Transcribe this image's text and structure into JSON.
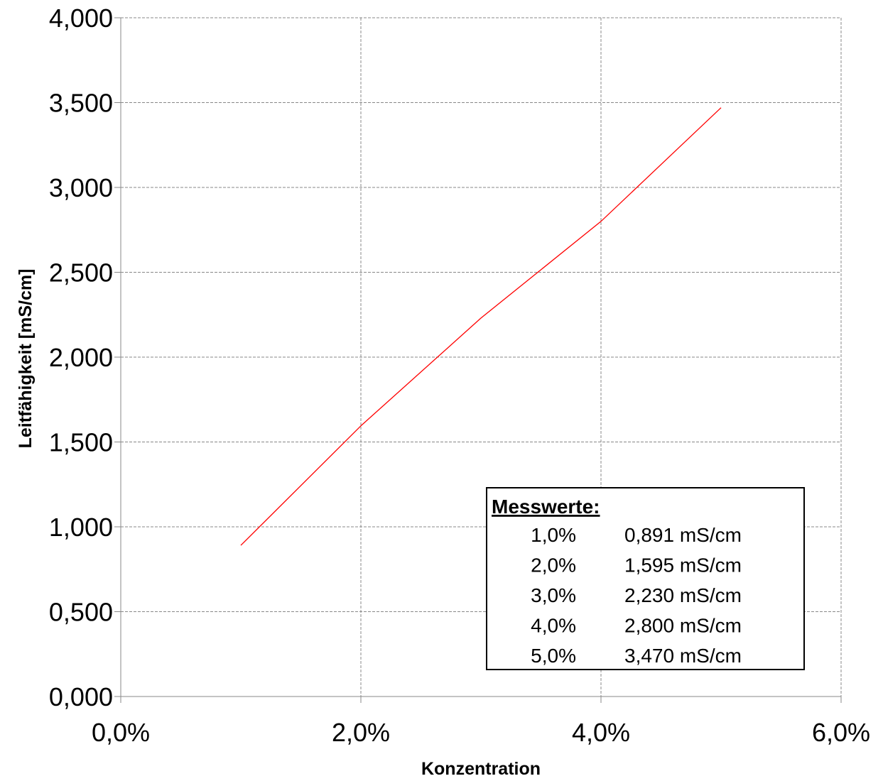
{
  "chart_data": {
    "type": "line",
    "xlabel": "Konzentration",
    "ylabel": "Leitfähigkeit  [mS/cm]",
    "x": [
      1.0,
      2.0,
      3.0,
      4.0,
      5.0
    ],
    "series": [
      {
        "values": [
          0.891,
          1.595,
          2.23,
          2.8,
          3.47
        ],
        "color": "#ff0000"
      }
    ],
    "xlim": [
      0,
      6
    ],
    "ylim": [
      0,
      4
    ],
    "x_ticks": [
      0,
      2,
      4,
      6
    ],
    "x_tick_labels": [
      "0,0%",
      "2,0%",
      "4,0%",
      "6,0%"
    ],
    "y_ticks": [
      0,
      0.5,
      1,
      1.5,
      2,
      2.5,
      3,
      3.5,
      4
    ],
    "y_tick_labels": [
      "0,000",
      "0,500",
      "1,000",
      "1,500",
      "2,000",
      "2,500",
      "3,000",
      "3,500",
      "4,000"
    ],
    "grid": true,
    "grid_style": "dashed",
    "grid_color": "#888888",
    "legend": {
      "placement": "bottom-right",
      "title": "Messwerte:",
      "rows": [
        {
          "concentration": "1,0%",
          "value": "0,891 mS/cm"
        },
        {
          "concentration": "2,0%",
          "value": "1,595 mS/cm"
        },
        {
          "concentration": "3,0%",
          "value": "2,230 mS/cm"
        },
        {
          "concentration": "4,0%",
          "value": "2,800 mS/cm"
        },
        {
          "concentration": "5,0%",
          "value": "3,470 mS/cm"
        }
      ]
    }
  }
}
